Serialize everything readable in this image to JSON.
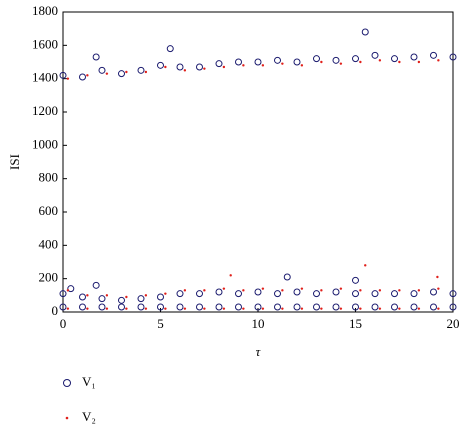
{
  "chart_data": {
    "type": "scatter",
    "y_label": "ISI",
    "x_label": "τ",
    "xlim": [
      0,
      20
    ],
    "ylim": [
      0,
      1800
    ],
    "xticks": [
      0,
      5,
      10,
      15,
      20
    ],
    "yticks": [
      0,
      200,
      400,
      600,
      800,
      1000,
      1200,
      1400,
      1600,
      1800
    ],
    "series": [
      {
        "name": "V₁",
        "color": "#1a1a6e",
        "marker": "circle",
        "x": [
          0,
          1,
          2,
          3,
          4,
          5,
          6,
          7,
          8,
          9,
          10,
          11,
          12,
          13,
          14,
          15,
          16,
          17,
          18,
          19,
          20,
          5.5,
          15.5,
          1.7,
          0,
          1,
          2,
          3,
          4,
          5,
          6,
          7,
          8,
          9,
          10,
          11,
          12,
          13,
          14,
          15,
          16,
          17,
          18,
          19,
          20,
          1.7,
          11.5,
          15,
          0.4,
          0,
          1,
          2,
          3,
          4,
          5,
          6,
          7,
          8,
          9,
          10,
          11,
          12,
          13,
          14,
          15,
          16,
          17,
          18,
          19,
          20
        ],
        "y": [
          1420,
          1410,
          1450,
          1430,
          1450,
          1480,
          1470,
          1470,
          1490,
          1500,
          1500,
          1510,
          1500,
          1520,
          1510,
          1520,
          1540,
          1520,
          1530,
          1540,
          1530,
          1580,
          1680,
          1530,
          110,
          90,
          80,
          70,
          80,
          90,
          110,
          110,
          120,
          110,
          120,
          110,
          120,
          110,
          120,
          110,
          110,
          110,
          110,
          120,
          110,
          160,
          210,
          190,
          140,
          30,
          30,
          30,
          30,
          30,
          30,
          30,
          30,
          30,
          30,
          30,
          30,
          30,
          30,
          30,
          30,
          30,
          30,
          30,
          30,
          30
        ]
      },
      {
        "name": "V₂",
        "color": "#e0201b",
        "marker": "dot",
        "x": [
          0.25,
          1.25,
          2.25,
          3.25,
          4.25,
          5.25,
          6.25,
          7.25,
          8.25,
          9.25,
          10.25,
          11.25,
          12.25,
          13.25,
          14.25,
          15.25,
          16.25,
          17.25,
          18.25,
          19.25,
          15.5,
          8.6,
          19.2,
          0.25,
          1.25,
          2.25,
          3.25,
          4.25,
          5.25,
          6.25,
          7.25,
          8.25,
          9.25,
          10.25,
          11.25,
          12.25,
          13.25,
          14.25,
          15.25,
          16.25,
          17.25,
          18.25,
          19.25,
          0.25,
          1.25,
          2.25,
          3.25,
          4.25,
          5.25,
          6.25,
          7.25,
          8.25,
          9.25,
          10.25,
          11.25,
          12.25,
          13.25,
          14.25,
          15.25,
          16.25,
          17.25,
          18.25,
          19.25
        ],
        "y": [
          1400,
          1420,
          1430,
          1440,
          1440,
          1470,
          1450,
          1460,
          1470,
          1480,
          1480,
          1490,
          1480,
          1500,
          1490,
          1500,
          1510,
          1500,
          1500,
          1510,
          280,
          220,
          210,
          130,
          100,
          100,
          90,
          100,
          110,
          130,
          130,
          140,
          130,
          140,
          130,
          140,
          130,
          140,
          130,
          130,
          130,
          130,
          140,
          20,
          20,
          20,
          20,
          20,
          20,
          20,
          20,
          20,
          20,
          20,
          20,
          20,
          20,
          20,
          20,
          20,
          20,
          20,
          20
        ]
      }
    ]
  }
}
